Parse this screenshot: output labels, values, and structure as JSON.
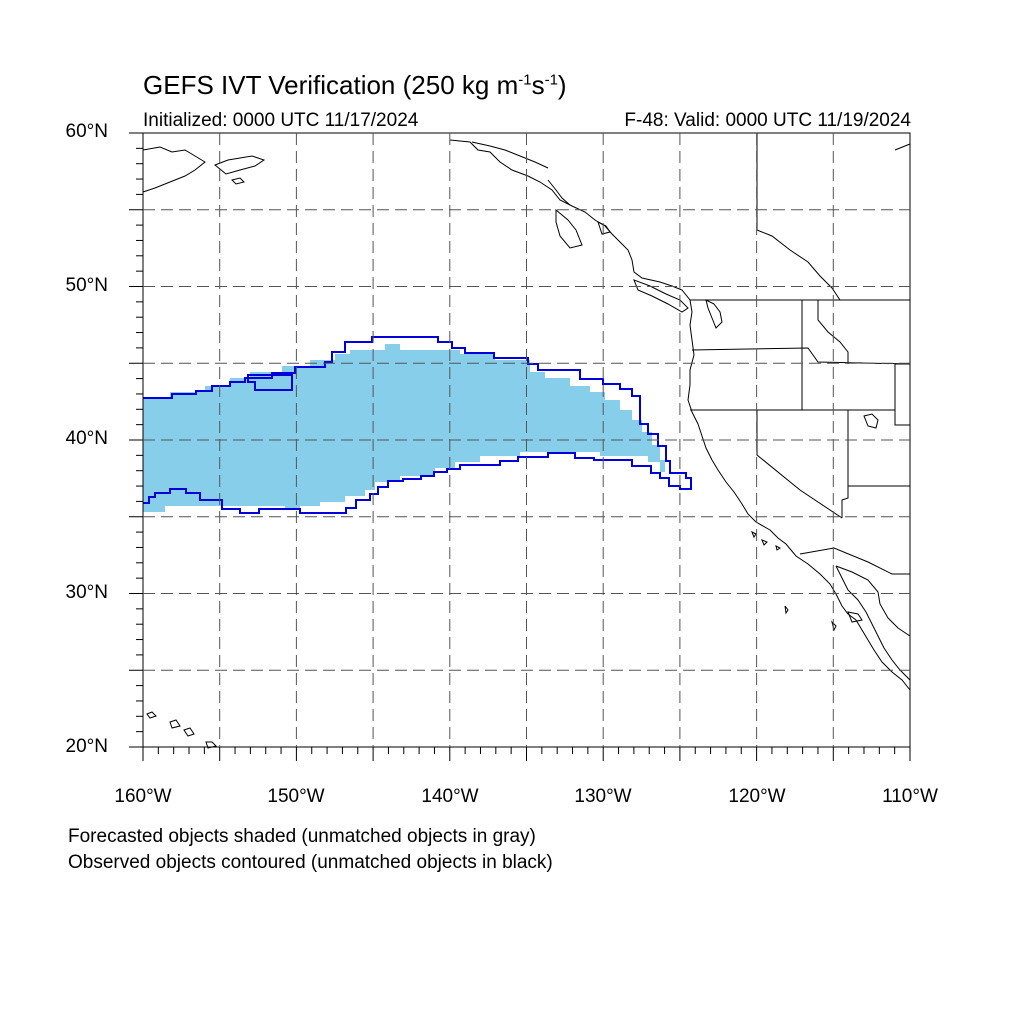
{
  "title": {
    "main": "GEFS IVT Verification (250 kg m",
    "sup1": "-1",
    "mid": "s",
    "sup2": "-1",
    "end": ")"
  },
  "init_text": "Initialized: 0000 UTC 11/17/2024",
  "valid_text": "F-48: Valid: 0000 UTC 11/19/2024",
  "notes": [
    "Forecasted objects shaded (unmatched objects in gray)",
    "Observed objects contoured (unmatched objects in black)"
  ],
  "lat_labels": [
    "60°N",
    "50°N",
    "40°N",
    "30°N",
    "20°N"
  ],
  "lon_labels": [
    "160°W",
    "150°W",
    "140°W",
    "130°W",
    "120°W",
    "110°W"
  ],
  "colors": {
    "forecast_fill": "#87ceeb",
    "observed_contour": "#0000dd",
    "coastline": "#000000",
    "grid": "#555555"
  }
}
